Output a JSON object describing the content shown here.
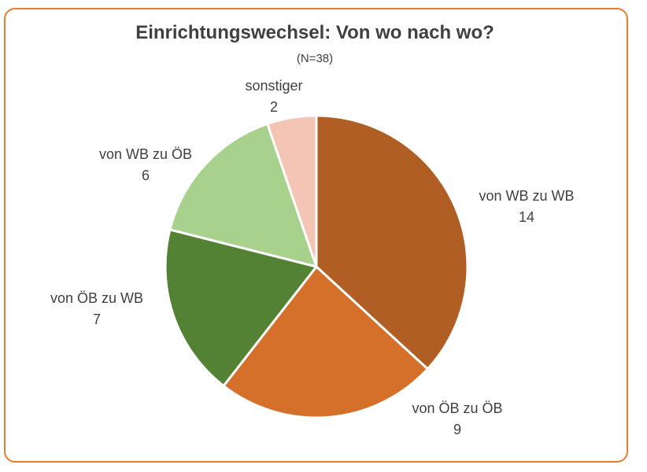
{
  "chart_data": {
    "type": "pie",
    "title": "Einrichtungswechsel: Von wo nach wo?",
    "subtitle": "(N=38)",
    "start_angle_deg": 0,
    "direction": "clockwise",
    "slices": [
      {
        "label": "von WB zu WB",
        "value": 14,
        "color": "#b05e23"
      },
      {
        "label": "von ÖB zu ÖB",
        "value": 9,
        "color": "#d5702b"
      },
      {
        "label": "von ÖB zu WB",
        "value": 7,
        "color": "#548235"
      },
      {
        "label": "von WB zu ÖB",
        "value": 6,
        "color": "#a9d18e"
      },
      {
        "label": "sonstiger",
        "value": 2,
        "color": "#f4c4b4"
      }
    ]
  },
  "frame_color": "#e87d2c"
}
